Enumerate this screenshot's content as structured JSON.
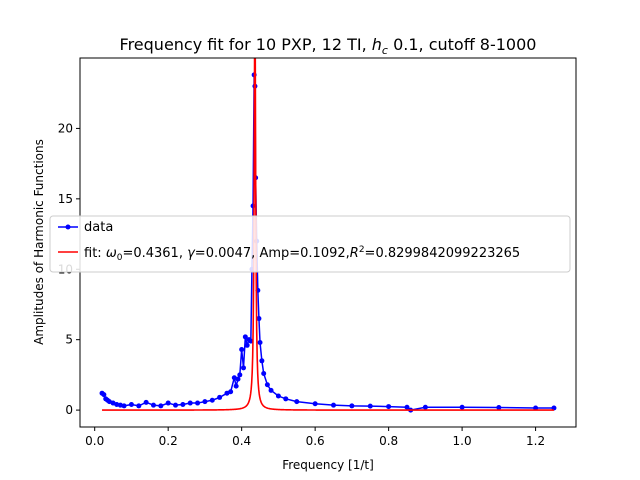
{
  "chart_data": {
    "type": "line",
    "title": {
      "prefix": "Frequency fit for 10 PXP, 12 TI, ",
      "math_var": "h",
      "math_sub": "c",
      "suffix": " 0.1, cutoff 8-1000"
    },
    "xlabel": "Frequency [1/t]",
    "ylabel": "Amplitudes of Harmonic Functions",
    "xlim": [
      -0.04,
      1.31
    ],
    "ylim": [
      -1.2,
      25.0
    ],
    "xticks": [
      0.0,
      0.2,
      0.4,
      0.6,
      0.8,
      1.0,
      1.2
    ],
    "xtick_labels": [
      "0.0",
      "0.2",
      "0.4",
      "0.6",
      "0.8",
      "1.0",
      "1.2"
    ],
    "yticks": [
      0,
      5,
      10,
      15,
      20
    ],
    "ytick_labels": [
      "0",
      "5",
      "10",
      "15",
      "20"
    ],
    "grid": false,
    "legend": {
      "placement": "center-left",
      "entries": [
        {
          "label": "data"
        },
        {
          "label_parts": [
            "fit: ",
            "ω",
            "0",
            "=0.4361, ",
            "γ",
            "=0.0047, Amp=0.1092,",
            "R",
            "2",
            "=0.8299842099223265"
          ]
        }
      ]
    },
    "series": [
      {
        "kind": "data",
        "color": "#0000ff",
        "marker": "circle",
        "x": [
          0.02,
          0.025,
          0.03,
          0.035,
          0.04,
          0.05,
          0.06,
          0.07,
          0.08,
          0.1,
          0.12,
          0.14,
          0.16,
          0.18,
          0.2,
          0.22,
          0.24,
          0.26,
          0.28,
          0.3,
          0.32,
          0.34,
          0.36,
          0.37,
          0.38,
          0.385,
          0.39,
          0.395,
          0.4,
          0.405,
          0.41,
          0.415,
          0.42,
          0.425,
          0.428,
          0.431,
          0.434,
          0.4361,
          0.438,
          0.441,
          0.444,
          0.447,
          0.45,
          0.455,
          0.46,
          0.47,
          0.48,
          0.5,
          0.52,
          0.55,
          0.6,
          0.65,
          0.7,
          0.75,
          0.8,
          0.85,
          0.86,
          0.9,
          1.0,
          1.1,
          1.2,
          1.25
        ],
        "y": [
          1.2,
          1.1,
          0.8,
          0.7,
          0.6,
          0.5,
          0.4,
          0.35,
          0.3,
          0.4,
          0.3,
          0.55,
          0.35,
          0.3,
          0.5,
          0.35,
          0.4,
          0.5,
          0.5,
          0.6,
          0.7,
          0.9,
          1.2,
          1.3,
          2.3,
          1.7,
          2.2,
          2.5,
          4.3,
          3.0,
          5.2,
          4.6,
          5.0,
          4.9,
          10.0,
          14.5,
          23.8,
          23.0,
          16.5,
          12.0,
          8.5,
          6.5,
          4.8,
          3.5,
          2.6,
          1.8,
          1.4,
          1.0,
          0.8,
          0.6,
          0.45,
          0.35,
          0.3,
          0.28,
          0.25,
          0.2,
          0.0,
          0.2,
          0.2,
          0.18,
          0.15,
          0.15
        ]
      },
      {
        "kind": "fit",
        "color": "#ff0000",
        "model": "lorentzian",
        "omega0": 0.4361,
        "gamma": 0.0047,
        "amp": 0.1092,
        "x_range": [
          0.02,
          1.25
        ]
      }
    ]
  }
}
